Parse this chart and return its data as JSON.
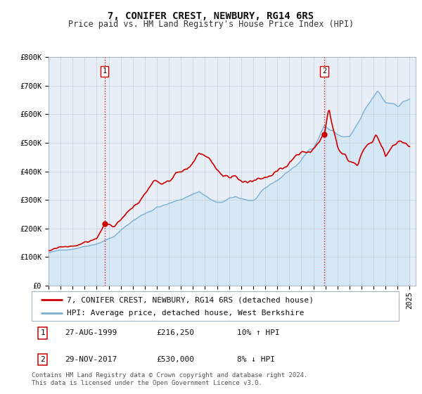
{
  "title": "7, CONIFER CREST, NEWBURY, RG14 6RS",
  "subtitle": "Price paid vs. HM Land Registry's House Price Index (HPI)",
  "ylim": [
    0,
    800000
  ],
  "yticks": [
    0,
    100000,
    200000,
    300000,
    400000,
    500000,
    600000,
    700000,
    800000
  ],
  "ytick_labels": [
    "£0",
    "£100K",
    "£200K",
    "£300K",
    "£400K",
    "£500K",
    "£600K",
    "£700K",
    "£800K"
  ],
  "xlim_start": 1995.0,
  "xlim_end": 2025.5,
  "hpi_color": "#7bafd4",
  "hpi_fill_color": "#d6e8f5",
  "price_color": "#cc0000",
  "vline_color": "#cc0000",
  "grid_color": "#c8d4e0",
  "plot_bg_color": "#e8eef5",
  "legend_label_price": "7, CONIFER CREST, NEWBURY, RG14 6RS (detached house)",
  "legend_label_hpi": "HPI: Average price, detached house, West Berkshire",
  "sale1_x": 1999.648,
  "sale1_y": 216250,
  "sale2_x": 2017.912,
  "sale2_y": 530000,
  "sale1_date": "27-AUG-1999",
  "sale1_price": "£216,250",
  "sale1_pct": "10% ↑ HPI",
  "sale2_date": "29-NOV-2017",
  "sale2_price": "£530,000",
  "sale2_pct": "8% ↓ HPI",
  "footnote": "Contains HM Land Registry data © Crown copyright and database right 2024.\nThis data is licensed under the Open Government Licence v3.0.",
  "title_fontsize": 10,
  "subtitle_fontsize": 8.5,
  "tick_fontsize": 7.5,
  "legend_fontsize": 8,
  "footnote_fontsize": 6.5
}
